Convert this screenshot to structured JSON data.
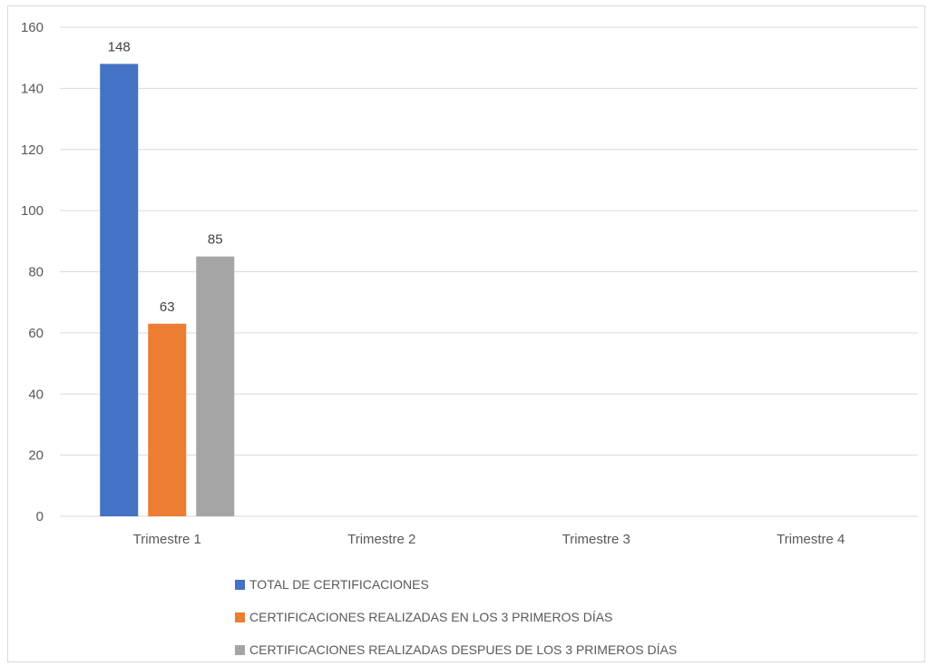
{
  "chart_data": {
    "type": "bar",
    "categories": [
      "Trimestre 1",
      "Trimestre 2",
      "Trimestre 3",
      "Trimestre 4"
    ],
    "series": [
      {
        "name": "TOTAL DE CERTIFICACIONES",
        "values": [
          148,
          null,
          null,
          null
        ],
        "color": "#4472c4"
      },
      {
        "name": "CERTIFICACIONES REALIZADAS EN LOS 3 PRIMEROS DÍAS",
        "values": [
          63,
          null,
          null,
          null
        ],
        "color": "#ed7d31"
      },
      {
        "name": "CERTIFICACIONES REALIZADAS DESPUES DE LOS 3 PRIMEROS DÍAS",
        "values": [
          85,
          null,
          null,
          null
        ],
        "color": "#a5a5a5"
      }
    ],
    "yticks": [
      0,
      20,
      40,
      60,
      80,
      100,
      120,
      140,
      160
    ],
    "ylim": [
      0,
      160
    ],
    "grid": true,
    "legend_position": "bottom",
    "data_labels": true
  }
}
